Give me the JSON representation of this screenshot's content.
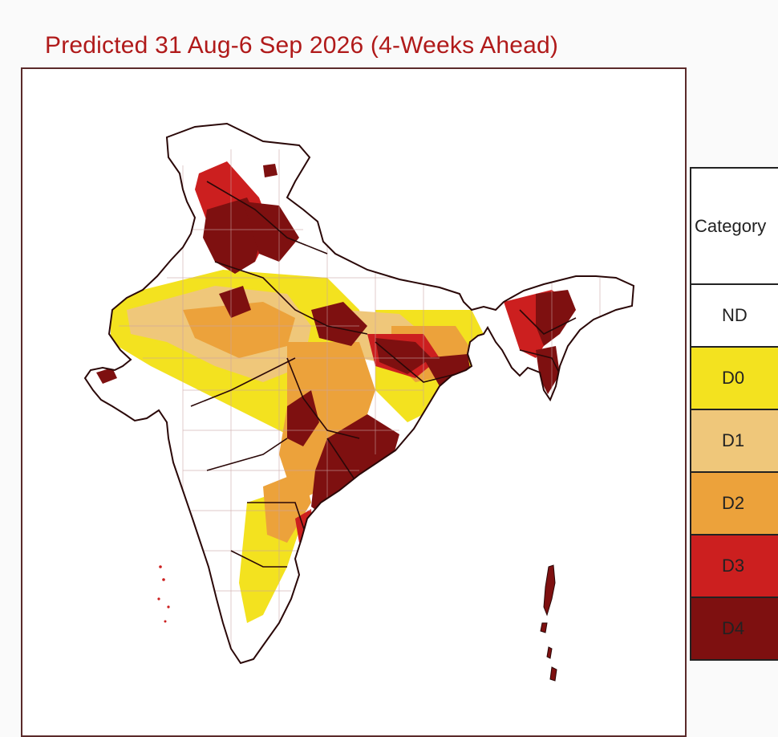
{
  "title": "Predicted 31 Aug-6 Sep 2026 (4-Weeks Ahead)",
  "legend": {
    "header": "Category",
    "items": [
      {
        "label": "ND",
        "color": "#ffffff"
      },
      {
        "label": "D0",
        "color": "#f3e21f"
      },
      {
        "label": "D1",
        "color": "#efc77a"
      },
      {
        "label": "D2",
        "color": "#eca23b"
      },
      {
        "label": "D3",
        "color": "#cc1f1f"
      },
      {
        "label": "D4",
        "color": "#7e1010"
      }
    ]
  },
  "colors": {
    "title": "#b01a1a",
    "boundary": "#2a0808",
    "district_lines": "#c9a3a3"
  }
}
